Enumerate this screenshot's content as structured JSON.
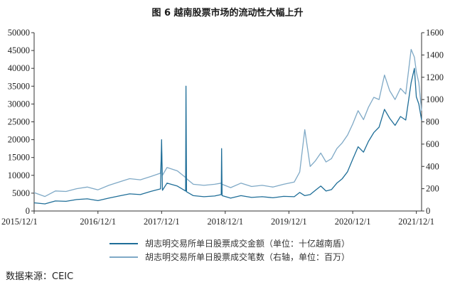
{
  "title": "图 6 越南股票市场的流动性大幅上升",
  "source": "数据来源：CEIC",
  "chart_data": {
    "type": "line",
    "x_tick_labels": [
      "2015/12/1",
      "2016/12/1",
      "2017/12/1",
      "2018/12/1",
      "2019/12/1",
      "2020/12/1",
      "2021/12/1"
    ],
    "xlim": [
      "2015/12/1",
      "2021/12/31"
    ],
    "left_axis": {
      "ylim": [
        0,
        50000
      ],
      "ticks": [
        0,
        5000,
        10000,
        15000,
        20000,
        25000,
        30000,
        35000,
        40000,
        45000,
        50000
      ]
    },
    "right_axis": {
      "ylim": [
        0,
        1600
      ],
      "ticks": [
        0,
        200,
        400,
        600,
        800,
        1000,
        1200,
        1400,
        1600
      ]
    },
    "series": [
      {
        "name": "胡志明交易所单日股票成交金额（单位：十亿越南盾）",
        "axis": "left",
        "color": "#1f6e98",
        "points": [
          [
            "2015/12/1",
            2300
          ],
          [
            "2016/02/01",
            2000
          ],
          [
            "2016/04/01",
            2800
          ],
          [
            "2016/06/01",
            2700
          ],
          [
            "2016/08/01",
            3200
          ],
          [
            "2016/10/01",
            3400
          ],
          [
            "2016/12/01",
            2900
          ],
          [
            "2017/02/01",
            3600
          ],
          [
            "2017/04/01",
            4200
          ],
          [
            "2017/06/01",
            4800
          ],
          [
            "2017/08/01",
            4600
          ],
          [
            "2017/10/01",
            5500
          ],
          [
            "2017/11/25",
            6200
          ],
          [
            "2017/12/01",
            20000
          ],
          [
            "2017/12/06",
            5800
          ],
          [
            "2018/01/01",
            7800
          ],
          [
            "2018/03/01",
            7000
          ],
          [
            "2018/04/18",
            5600
          ],
          [
            "2018/04/20",
            35000
          ],
          [
            "2018/04/23",
            5400
          ],
          [
            "2018/06/01",
            4300
          ],
          [
            "2018/08/01",
            4000
          ],
          [
            "2018/10/01",
            4200
          ],
          [
            "2018/11/08",
            4600
          ],
          [
            "2018/11/10",
            17500
          ],
          [
            "2018/11/13",
            4300
          ],
          [
            "2019/01/01",
            3600
          ],
          [
            "2019/03/01",
            4300
          ],
          [
            "2019/05/01",
            3800
          ],
          [
            "2019/07/01",
            4000
          ],
          [
            "2019/09/01",
            3700
          ],
          [
            "2019/11/01",
            4100
          ],
          [
            "2020/01/01",
            4000
          ],
          [
            "2020/02/01",
            5200
          ],
          [
            "2020/03/01",
            4300
          ],
          [
            "2020/04/01",
            4600
          ],
          [
            "2020/05/01",
            5800
          ],
          [
            "2020/06/01",
            7000
          ],
          [
            "2020/07/01",
            5600
          ],
          [
            "2020/08/01",
            6000
          ],
          [
            "2020/09/01",
            7800
          ],
          [
            "2020/10/01",
            9000
          ],
          [
            "2020/11/01",
            11000
          ],
          [
            "2020/12/01",
            14500
          ],
          [
            "2021/01/01",
            18000
          ],
          [
            "2021/02/01",
            16500
          ],
          [
            "2021/03/01",
            19500
          ],
          [
            "2021/04/01",
            22000
          ],
          [
            "2021/05/01",
            23500
          ],
          [
            "2021/06/01",
            28500
          ],
          [
            "2021/07/01",
            26000
          ],
          [
            "2021/08/01",
            24000
          ],
          [
            "2021/09/01",
            26500
          ],
          [
            "2021/10/01",
            25500
          ],
          [
            "2021/11/01",
            36000
          ],
          [
            "2021/11/20",
            40000
          ],
          [
            "2021/12/01",
            32000
          ],
          [
            "2021/12/15",
            30000
          ],
          [
            "2021/12/31",
            25500
          ]
        ]
      },
      {
        "name": "胡志明交易所单日股票成交笔数（右轴，单位：百万）",
        "axis": "right",
        "color": "#7fa9c6",
        "points": [
          [
            "2015/12/1",
            165
          ],
          [
            "2016/02/01",
            130
          ],
          [
            "2016/04/01",
            180
          ],
          [
            "2016/06/01",
            175
          ],
          [
            "2016/08/01",
            200
          ],
          [
            "2016/10/01",
            215
          ],
          [
            "2016/12/01",
            190
          ],
          [
            "2017/02/01",
            230
          ],
          [
            "2017/04/01",
            260
          ],
          [
            "2017/06/01",
            290
          ],
          [
            "2017/08/01",
            280
          ],
          [
            "2017/10/01",
            310
          ],
          [
            "2017/11/25",
            340
          ],
          [
            "2017/12/01",
            560
          ],
          [
            "2017/12/06",
            320
          ],
          [
            "2018/01/01",
            390
          ],
          [
            "2018/03/01",
            360
          ],
          [
            "2018/04/18",
            300
          ],
          [
            "2018/04/20",
            320
          ],
          [
            "2018/04/23",
            290
          ],
          [
            "2018/06/01",
            240
          ],
          [
            "2018/08/01",
            230
          ],
          [
            "2018/10/01",
            240
          ],
          [
            "2018/11/08",
            250
          ],
          [
            "2018/11/10",
            255
          ],
          [
            "2018/11/13",
            240
          ],
          [
            "2019/01/01",
            210
          ],
          [
            "2019/03/01",
            250
          ],
          [
            "2019/05/01",
            220
          ],
          [
            "2019/07/01",
            230
          ],
          [
            "2019/09/01",
            215
          ],
          [
            "2019/11/01",
            240
          ],
          [
            "2020/01/01",
            260
          ],
          [
            "2020/02/01",
            350
          ],
          [
            "2020/03/01",
            730
          ],
          [
            "2020/04/01",
            400
          ],
          [
            "2020/05/01",
            450
          ],
          [
            "2020/06/01",
            520
          ],
          [
            "2020/07/01",
            440
          ],
          [
            "2020/08/01",
            470
          ],
          [
            "2020/09/01",
            560
          ],
          [
            "2020/10/01",
            610
          ],
          [
            "2020/11/01",
            680
          ],
          [
            "2020/12/01",
            780
          ],
          [
            "2021/01/01",
            900
          ],
          [
            "2021/02/01",
            820
          ],
          [
            "2021/03/01",
            930
          ],
          [
            "2021/04/01",
            1020
          ],
          [
            "2021/05/01",
            1000
          ],
          [
            "2021/06/01",
            1220
          ],
          [
            "2021/07/01",
            1080
          ],
          [
            "2021/08/01",
            1000
          ],
          [
            "2021/09/01",
            1100
          ],
          [
            "2021/10/01",
            1050
          ],
          [
            "2021/11/01",
            1450
          ],
          [
            "2021/11/20",
            1380
          ],
          [
            "2021/12/01",
            1250
          ],
          [
            "2021/12/15",
            1150
          ],
          [
            "2021/12/31",
            900
          ]
        ]
      }
    ],
    "grid": false,
    "legend": "bottom"
  }
}
